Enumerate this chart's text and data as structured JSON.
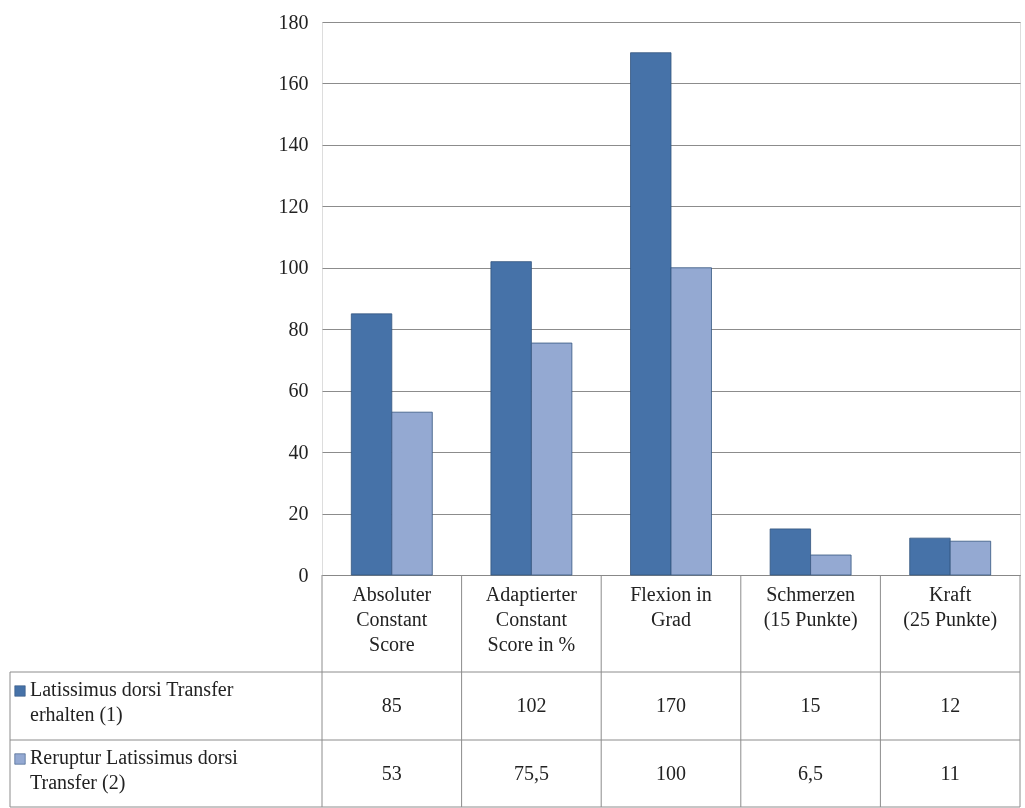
{
  "chart_data": {
    "type": "bar",
    "categories": [
      "Absoluter Constant Score",
      "Adaptierter Constant Score in %",
      "Flexion in Grad",
      "Schmerzen (15 Punkte)",
      "Kraft (25 Punkte)"
    ],
    "series": [
      {
        "name": "Latissimus dorsi Transfer erhalten (1)",
        "color": "#4672a8",
        "values": [
          85,
          102,
          170,
          15,
          12
        ],
        "value_labels": [
          "85",
          "102",
          "170",
          "15",
          "12"
        ]
      },
      {
        "name": "Reruptur Latissimus dorsi Transfer (2)",
        "color": "#94a9d2",
        "values": [
          53,
          75.5,
          100,
          6.5,
          11
        ],
        "value_labels": [
          "53",
          "75,5",
          "100",
          "6,5",
          "11"
        ]
      }
    ],
    "ylim": [
      0,
      180
    ],
    "yticks": [
      0,
      20,
      40,
      60,
      80,
      100,
      120,
      140,
      160,
      180
    ],
    "grid": true,
    "legend": "bottom"
  }
}
